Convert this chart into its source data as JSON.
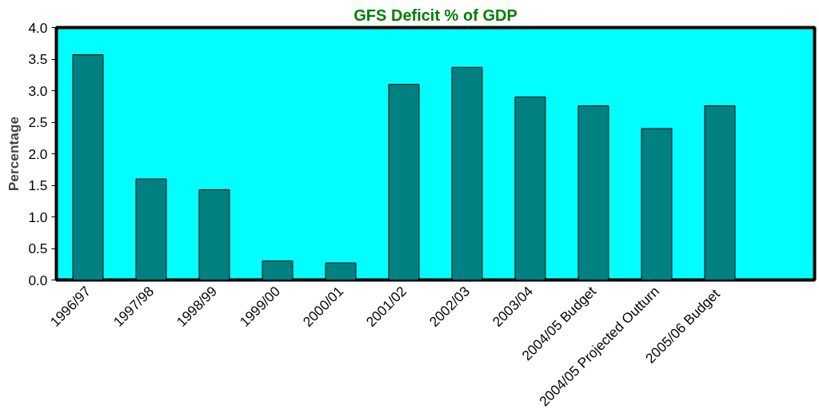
{
  "chart_data": {
    "type": "bar",
    "title": "GFS Deficit % of GDP",
    "ylabel": "Percentage",
    "categories": [
      "1996/97",
      "1997/98",
      "1998/99",
      "1999/00",
      "2000/01",
      "2001/02",
      "2002/03",
      "2003/04",
      "2004/05 Budget",
      "2004/05 Projected Outturn",
      "2005/06  Budget",
      null
    ],
    "values": [
      3.57,
      1.6,
      1.43,
      0.3,
      0.27,
      3.1,
      3.37,
      2.9,
      2.76,
      2.4,
      2.76,
      null
    ],
    "color": "#008080",
    "ylim": [
      0,
      4
    ],
    "yticks": [
      {
        "value": 0,
        "label": "0.0"
      },
      {
        "value": 0.5,
        "label": "0.5"
      },
      {
        "value": 1,
        "label": "1.0"
      },
      {
        "value": 1.5,
        "label": "1.5"
      },
      {
        "value": 2,
        "label": "2.0"
      },
      {
        "value": 2.5,
        "label": "2.5"
      },
      {
        "value": 3,
        "label": "3.0"
      },
      {
        "value": 3.5,
        "label": "3.5"
      },
      {
        "value": 4,
        "label": "4.0"
      }
    ],
    "grid": false
  }
}
